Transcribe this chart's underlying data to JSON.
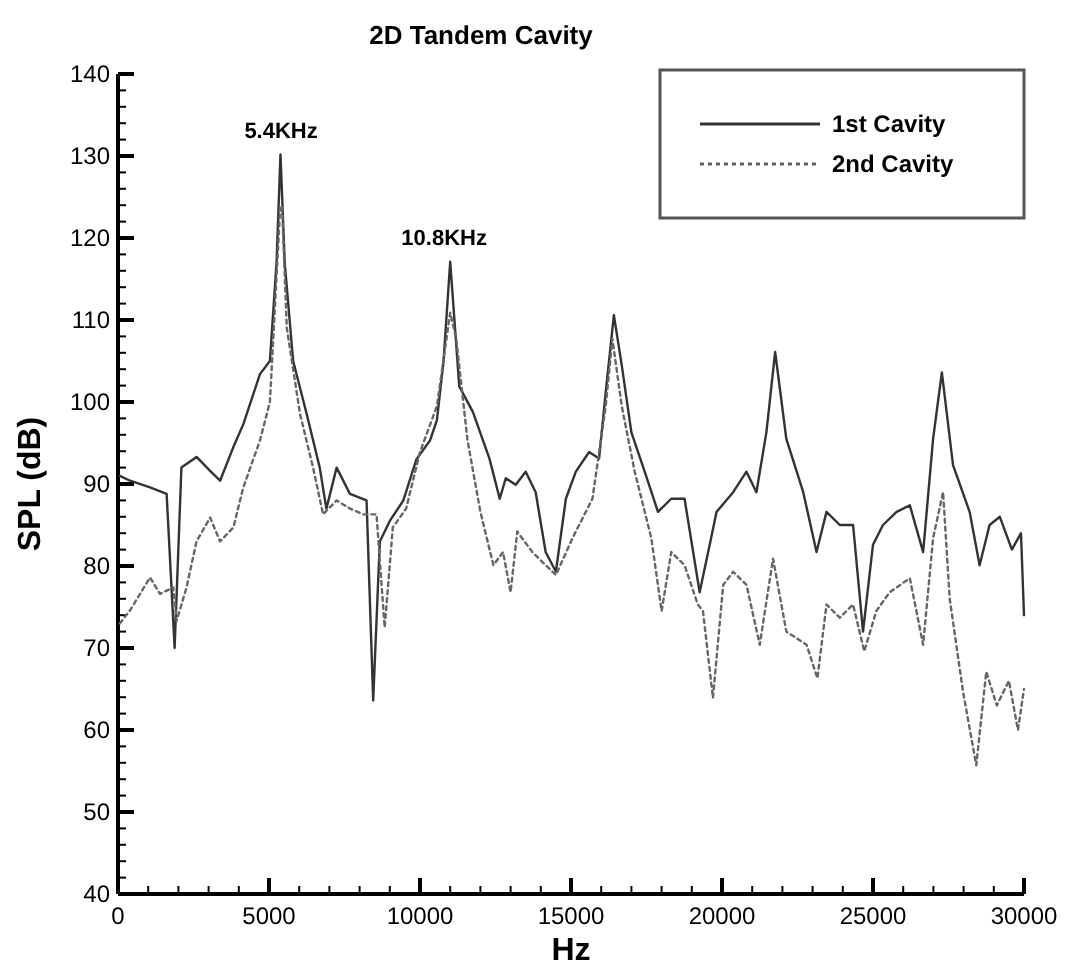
{
  "chart_data": {
    "type": "line",
    "title": "2D Tandem Cavity",
    "xlabel": "Hz",
    "ylabel": "SPL (dB)",
    "xlim": [
      0,
      30000
    ],
    "ylim": [
      40,
      140
    ],
    "xticks": [
      0,
      {
        "value": 1000,
        "label": null
      },
      {
        "value": 2000,
        "label": null
      },
      {
        "value": 3000,
        "label": null
      },
      {
        "value": 4000,
        "label": null
      },
      5000,
      {
        "value": 6000,
        "label": null
      },
      {
        "value": 7000,
        "label": null
      },
      {
        "value": 8000,
        "label": null
      },
      {
        "value": 9000,
        "label": null
      },
      10000,
      {
        "value": 11000,
        "label": null
      },
      {
        "value": 12000,
        "label": null
      },
      {
        "value": 13000,
        "label": null
      },
      {
        "value": 14000,
        "label": null
      },
      15000,
      {
        "value": 16000,
        "label": null
      },
      {
        "value": 17000,
        "label": null
      },
      {
        "value": 18000,
        "label": null
      },
      {
        "value": 19000,
        "label": null
      },
      20000,
      {
        "value": 21000,
        "label": null
      },
      {
        "value": 22000,
        "label": null
      },
      {
        "value": 23000,
        "label": null
      },
      {
        "value": 24000,
        "label": null
      },
      25000,
      {
        "value": 26000,
        "label": null
      },
      {
        "value": 27000,
        "label": null
      },
      {
        "value": 28000,
        "label": null
      },
      {
        "value": 29000,
        "label": null
      },
      30000
    ],
    "yticks": [
      40,
      {
        "value": 42,
        "label": null
      },
      {
        "value": 44,
        "label": null
      },
      {
        "value": 46,
        "label": null
      },
      {
        "value": 48,
        "label": null
      },
      50,
      {
        "value": 52,
        "label": null
      },
      {
        "value": 54,
        "label": null
      },
      {
        "value": 56,
        "label": null
      },
      {
        "value": 58,
        "label": null
      },
      60,
      {
        "value": 62,
        "label": null
      },
      {
        "value": 64,
        "label": null
      },
      {
        "value": 66,
        "label": null
      },
      {
        "value": 68,
        "label": null
      },
      70,
      {
        "value": 72,
        "label": null
      },
      {
        "value": 74,
        "label": null
      },
      {
        "value": 76,
        "label": null
      },
      {
        "value": 78,
        "label": null
      },
      80,
      {
        "value": 82,
        "label": null
      },
      {
        "value": 84,
        "label": null
      },
      {
        "value": 86,
        "label": null
      },
      {
        "value": 88,
        "label": null
      },
      90,
      {
        "value": 92,
        "label": null
      },
      {
        "value": 94,
        "label": null
      },
      {
        "value": 96,
        "label": null
      },
      {
        "value": 98,
        "label": null
      },
      100,
      {
        "value": 102,
        "label": null
      },
      {
        "value": 104,
        "label": null
      },
      {
        "value": 106,
        "label": null
      },
      {
        "value": 108,
        "label": null
      },
      110,
      {
        "value": 112,
        "label": null
      },
      {
        "value": 114,
        "label": null
      },
      {
        "value": 116,
        "label": null
      },
      {
        "value": 118,
        "label": null
      },
      120,
      {
        "value": 122,
        "label": null
      },
      {
        "value": 124,
        "label": null
      },
      {
        "value": 126,
        "label": null
      },
      {
        "value": 128,
        "label": null
      },
      130,
      {
        "value": 132,
        "label": null
      },
      {
        "value": 134,
        "label": null
      },
      {
        "value": 136,
        "label": null
      },
      {
        "value": 138,
        "label": null
      },
      140
    ],
    "grid": false,
    "legend": "top right",
    "annotations": [
      {
        "text": "5.4KHz",
        "x": 5400,
        "y": 130
      },
      {
        "text": "10.8KHz",
        "x": 10800,
        "y": 117
      }
    ],
    "series": [
      {
        "name": "1st Cavity",
        "color": "#333333",
        "line_style": "solid",
        "x": [
          60,
          400,
          1060,
          1610,
          1875,
          2100,
          2600,
          3050,
          3380,
          3820,
          4150,
          4700,
          5030,
          5250,
          5380,
          5520,
          5800,
          6250,
          6680,
          6900,
          7240,
          7680,
          8230,
          8450,
          8670,
          9000,
          9450,
          9880,
          10330,
          10560,
          10780,
          11000,
          11300,
          11750,
          12300,
          12640,
          12840,
          13170,
          13500,
          13830,
          14160,
          14500,
          14830,
          15160,
          15600,
          15930,
          16150,
          16420,
          16680,
          17000,
          17440,
          17880,
          18320,
          18760,
          19260,
          19640,
          19820,
          20370,
          20810,
          21140,
          21470,
          21760,
          22130,
          22690,
          23130,
          23460,
          23900,
          24340,
          24670,
          25000,
          25330,
          25780,
          26220,
          26660,
          26990,
          27280,
          27650,
          28200,
          28530,
          28860,
          29200,
          29600,
          29900,
          30000
        ],
        "values": [
          91,
          90.4,
          89.6,
          88.8,
          70,
          92,
          93.3,
          91.6,
          90.4,
          94.5,
          97.3,
          103.4,
          105,
          117,
          130.2,
          117,
          105,
          98.5,
          92,
          87,
          92,
          88.8,
          88,
          63.6,
          83,
          85.5,
          88,
          93,
          95.3,
          97.8,
          105,
          117.1,
          101.9,
          98.8,
          93.1,
          88.2,
          90.7,
          89.9,
          91.5,
          89,
          81.7,
          79.3,
          88.2,
          91.5,
          93.9,
          93.1,
          101.2,
          110.6,
          104.5,
          96.3,
          91.5,
          86.6,
          88.2,
          88.2,
          76.8,
          83.4,
          86.6,
          89,
          91.5,
          89,
          96.3,
          106.1,
          95.5,
          89,
          81.7,
          86.6,
          85,
          85,
          72,
          82.6,
          85,
          86.6,
          87.4,
          81.7,
          95.5,
          103.6,
          92.3,
          86.6,
          80.1,
          85,
          86,
          82,
          84,
          74
        ]
      },
      {
        "name": "2nd Cavity",
        "color": "#666666",
        "line_style": "dotted",
        "x": [
          60,
          400,
          730,
          1060,
          1390,
          1830,
          1940,
          2270,
          2600,
          3050,
          3380,
          3820,
          4150,
          4700,
          5030,
          5360,
          5430,
          5590,
          6030,
          6460,
          6790,
          7240,
          7680,
          8120,
          8560,
          8830,
          9100,
          9540,
          10000,
          10560,
          11000,
          11200,
          11570,
          12000,
          12430,
          12750,
          13000,
          13220,
          13720,
          14160,
          14500,
          15050,
          15710,
          16150,
          16370,
          16680,
          17110,
          17660,
          18000,
          18320,
          18760,
          19200,
          19370,
          19700,
          20040,
          20370,
          20810,
          21250,
          21690,
          22130,
          22800,
          23160,
          23460,
          23900,
          24340,
          24710,
          25110,
          25550,
          26220,
          26660,
          26990,
          27320,
          27540,
          27980,
          28420,
          28750,
          29100,
          29500,
          29800,
          30000
        ],
        "values": [
          73,
          74.6,
          76.6,
          78.6,
          76.6,
          77.4,
          73.3,
          77.4,
          83,
          85.9,
          83,
          84.7,
          89.6,
          95.3,
          100,
          123,
          124,
          109,
          98.5,
          92,
          86.3,
          88,
          87,
          86.3,
          86.3,
          72.5,
          84.7,
          87,
          93.9,
          99.5,
          110.9,
          107.7,
          95.4,
          86.6,
          80.1,
          81.7,
          76.8,
          84.2,
          81.7,
          80.1,
          78.9,
          83.4,
          88.2,
          99.5,
          107.7,
          99.5,
          91.5,
          83.4,
          74.5,
          81.7,
          80.1,
          75.3,
          74.5,
          63.9,
          77.7,
          79.3,
          77.7,
          70.4,
          80.9,
          72,
          70.4,
          66.3,
          75.3,
          73.7,
          75.3,
          69.6,
          74.5,
          76.8,
          78.5,
          70.4,
          83.4,
          89,
          76,
          64.7,
          55.7,
          67.1,
          63,
          66,
          60,
          65
        ]
      }
    ]
  }
}
